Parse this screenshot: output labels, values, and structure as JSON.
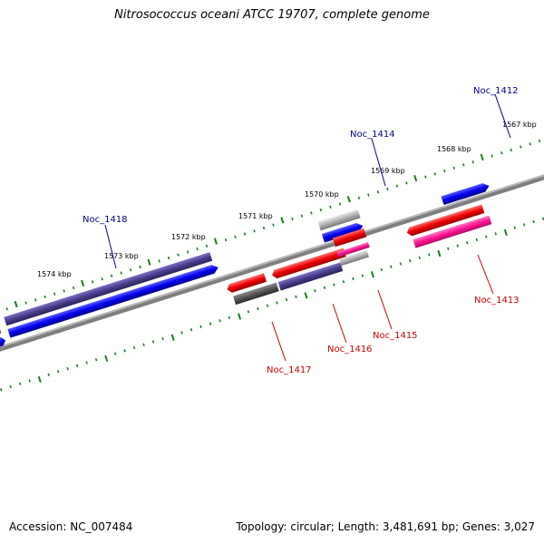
{
  "title": "Nitrosococcus oceani ATCC 19707, complete genome",
  "footer": {
    "accession": "Accession: NC_007484",
    "summary": "Topology: circular; Length: 3,481,691 bp; Genes: 3,027"
  },
  "kbp_labels": [
    "1567 kbp",
    "1568 kbp",
    "1569 kbp",
    "1570 kbp",
    "1571 kbp",
    "1572 kbp",
    "1573 kbp",
    "1574 kbp"
  ],
  "gene_labels": {
    "forward": [
      "Noc_1412",
      "Noc_1414",
      "Noc_1418"
    ],
    "reverse": [
      "Noc_1413",
      "Noc_1415",
      "Noc_1416",
      "Noc_1417"
    ]
  },
  "colors": {
    "backbone": "#808080",
    "tick": "#1a7f1a",
    "forward_label": "#00008b",
    "reverse_label": "#cc0000",
    "cds_blue": "#0000dd",
    "cds_slate": "#483d8b",
    "cds_red": "#ee0000",
    "cds_pink": "#ff1493",
    "cds_grey": "#a9a9a9",
    "cds_olive": "#6b8e23",
    "cds_darkgrey": "#555555"
  }
}
